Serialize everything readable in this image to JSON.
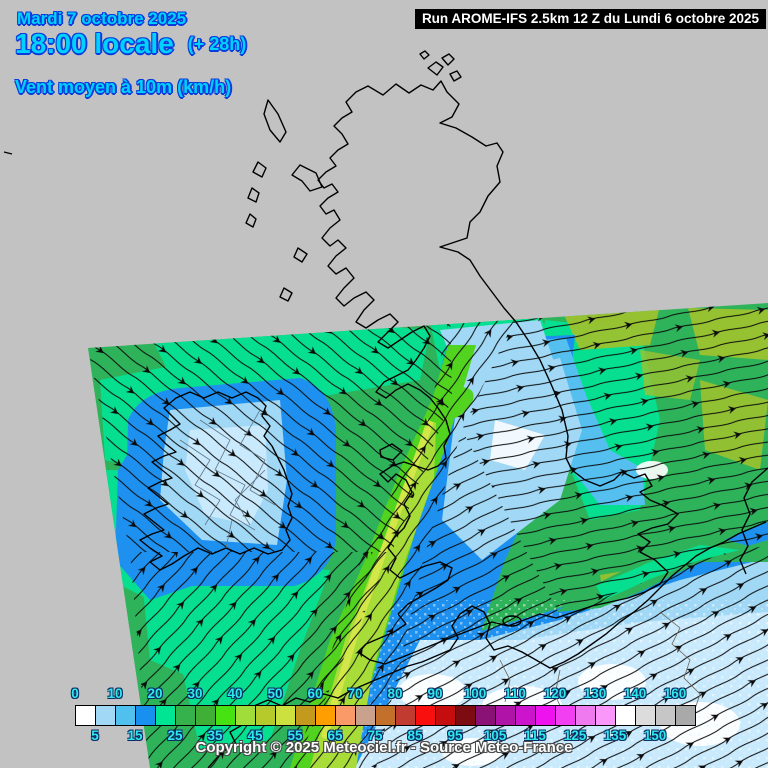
{
  "header": {
    "date_line": "Mardi 7 octobre 2025",
    "time_line": "18:00 locale",
    "time_offset": "(+ 28h)",
    "param_line": "Vent moyen à 10m (km/h)",
    "run_banner": "Run AROME-IFS 2.5km 12 Z du Lundi 6 octobre 2025"
  },
  "footer": {
    "copyright": "Copyright © 2025 Meteociel.fr - Source Meteo-France"
  },
  "map": {
    "model": "AROME-IFS",
    "parameter": "Vent moyen à 10m",
    "unit": "km/h",
    "background_color": "#c2c2c2",
    "coastline_color": "#000000"
  },
  "legend": {
    "unit": "km/h",
    "colors": [
      "#ffffff",
      "#a0d8f5",
      "#50c0ee",
      "#1890f0",
      "#00e593",
      "#35b24b",
      "#3faf36",
      "#46e212",
      "#a0dc3a",
      "#b6ca2c",
      "#cce13e",
      "#c49a1e",
      "#ff9e00",
      "#fa9a68",
      "#c9a18c",
      "#c2702a",
      "#c23b30",
      "#fa0f0f",
      "#c60d0d",
      "#7c0b12",
      "#8a1175",
      "#b013a8",
      "#cc14cc",
      "#ee13ee",
      "#f23ff2",
      "#ef79ef",
      "#fb97fb",
      "#ffffff",
      "#dcdcdc",
      "#c6c6c6",
      "#a9a9a9"
    ],
    "labels_top": [
      "0",
      "10",
      "20",
      "30",
      "40",
      "50",
      "60",
      "70",
      "80",
      "90",
      "100",
      "110",
      "120",
      "130",
      "140",
      "160"
    ],
    "labels_bottom": [
      "5",
      "15",
      "25",
      "35",
      "45",
      "55",
      "65",
      "75",
      "85",
      "95",
      "105",
      "115",
      "125",
      "135",
      "150"
    ],
    "label_color": "#2fe9e9"
  }
}
